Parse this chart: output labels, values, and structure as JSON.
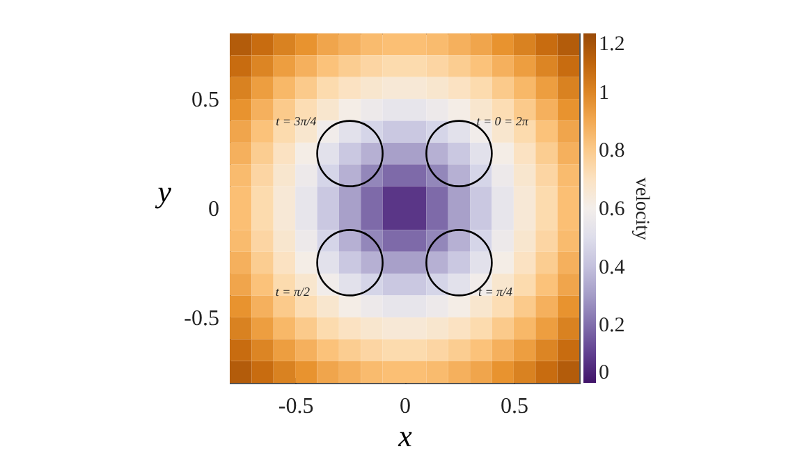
{
  "chart_data": {
    "type": "heatmap",
    "xlabel": "x",
    "ylabel": "y",
    "clabel": "velocity",
    "xlim": [
      -0.8,
      0.8
    ],
    "ylim": [
      -0.8,
      0.8
    ],
    "xticks": [
      -0.5,
      0,
      0.5
    ],
    "yticks": [
      -0.5,
      0,
      0.5
    ],
    "clim": [
      0,
      1.2
    ],
    "cticks": [
      0,
      0.2,
      0.4,
      0.6,
      0.8,
      1,
      1.2
    ],
    "x": [
      -0.75,
      -0.65,
      -0.55,
      -0.45,
      -0.35,
      -0.25,
      -0.15,
      -0.05,
      0.05,
      0.15,
      0.25,
      0.35,
      0.45,
      0.55,
      0.65,
      0.75
    ],
    "y": [
      0.75,
      0.65,
      0.55,
      0.45,
      0.35,
      0.25,
      0.15,
      0.05,
      -0.05,
      -0.15,
      -0.25,
      -0.35,
      -0.45,
      -0.55,
      -0.65,
      -0.75
    ],
    "cells": [
      [
        1.13,
        1.07,
        1.01,
        0.96,
        0.91,
        0.88,
        0.85,
        0.84,
        0.84,
        0.85,
        0.88,
        0.91,
        0.96,
        1.01,
        1.07,
        1.13
      ],
      [
        1.07,
        1.0,
        0.93,
        0.88,
        0.83,
        0.79,
        0.76,
        0.74,
        0.74,
        0.76,
        0.79,
        0.83,
        0.88,
        0.93,
        1.0,
        1.07
      ],
      [
        1.01,
        0.93,
        0.86,
        0.8,
        0.74,
        0.7,
        0.67,
        0.65,
        0.65,
        0.67,
        0.7,
        0.74,
        0.8,
        0.86,
        0.93,
        1.01
      ],
      [
        0.96,
        0.88,
        0.8,
        0.73,
        0.67,
        0.61,
        0.57,
        0.54,
        0.54,
        0.57,
        0.61,
        0.67,
        0.73,
        0.8,
        0.88,
        0.96
      ],
      [
        0.91,
        0.83,
        0.74,
        0.67,
        0.59,
        0.52,
        0.46,
        0.42,
        0.42,
        0.46,
        0.52,
        0.59,
        0.67,
        0.74,
        0.83,
        0.91
      ],
      [
        0.88,
        0.79,
        0.7,
        0.61,
        0.52,
        0.42,
        0.35,
        0.31,
        0.31,
        0.35,
        0.42,
        0.52,
        0.61,
        0.7,
        0.79,
        0.88
      ],
      [
        0.85,
        0.76,
        0.67,
        0.57,
        0.46,
        0.35,
        0.25,
        0.19,
        0.19,
        0.25,
        0.35,
        0.46,
        0.57,
        0.67,
        0.76,
        0.85
      ],
      [
        0.84,
        0.74,
        0.65,
        0.54,
        0.42,
        0.31,
        0.19,
        0.08,
        0.08,
        0.19,
        0.31,
        0.42,
        0.54,
        0.65,
        0.74,
        0.84
      ],
      [
        0.84,
        0.74,
        0.65,
        0.54,
        0.42,
        0.31,
        0.19,
        0.08,
        0.08,
        0.19,
        0.31,
        0.42,
        0.54,
        0.65,
        0.74,
        0.84
      ],
      [
        0.85,
        0.76,
        0.67,
        0.57,
        0.46,
        0.35,
        0.25,
        0.19,
        0.19,
        0.25,
        0.35,
        0.46,
        0.57,
        0.67,
        0.76,
        0.85
      ],
      [
        0.88,
        0.79,
        0.7,
        0.61,
        0.52,
        0.42,
        0.35,
        0.31,
        0.31,
        0.35,
        0.42,
        0.52,
        0.61,
        0.7,
        0.79,
        0.88
      ],
      [
        0.91,
        0.83,
        0.74,
        0.67,
        0.59,
        0.52,
        0.46,
        0.42,
        0.42,
        0.46,
        0.52,
        0.59,
        0.67,
        0.74,
        0.83,
        0.91
      ],
      [
        0.96,
        0.88,
        0.8,
        0.73,
        0.67,
        0.61,
        0.57,
        0.54,
        0.54,
        0.57,
        0.61,
        0.67,
        0.73,
        0.8,
        0.88,
        0.96
      ],
      [
        1.01,
        0.93,
        0.86,
        0.8,
        0.74,
        0.7,
        0.67,
        0.65,
        0.65,
        0.67,
        0.7,
        0.74,
        0.8,
        0.86,
        0.93,
        1.01
      ],
      [
        1.07,
        1.0,
        0.93,
        0.88,
        0.83,
        0.79,
        0.76,
        0.74,
        0.74,
        0.76,
        0.79,
        0.83,
        0.88,
        0.93,
        1.0,
        1.07
      ],
      [
        1.13,
        1.07,
        1.01,
        0.96,
        0.91,
        0.88,
        0.85,
        0.84,
        0.84,
        0.85,
        0.88,
        0.91,
        0.96,
        1.01,
        1.07,
        1.13
      ]
    ],
    "annotations": [
      "t = 3π/4",
      "t = 0 = 2π",
      "t = π/2",
      "t = π/4"
    ]
  }
}
